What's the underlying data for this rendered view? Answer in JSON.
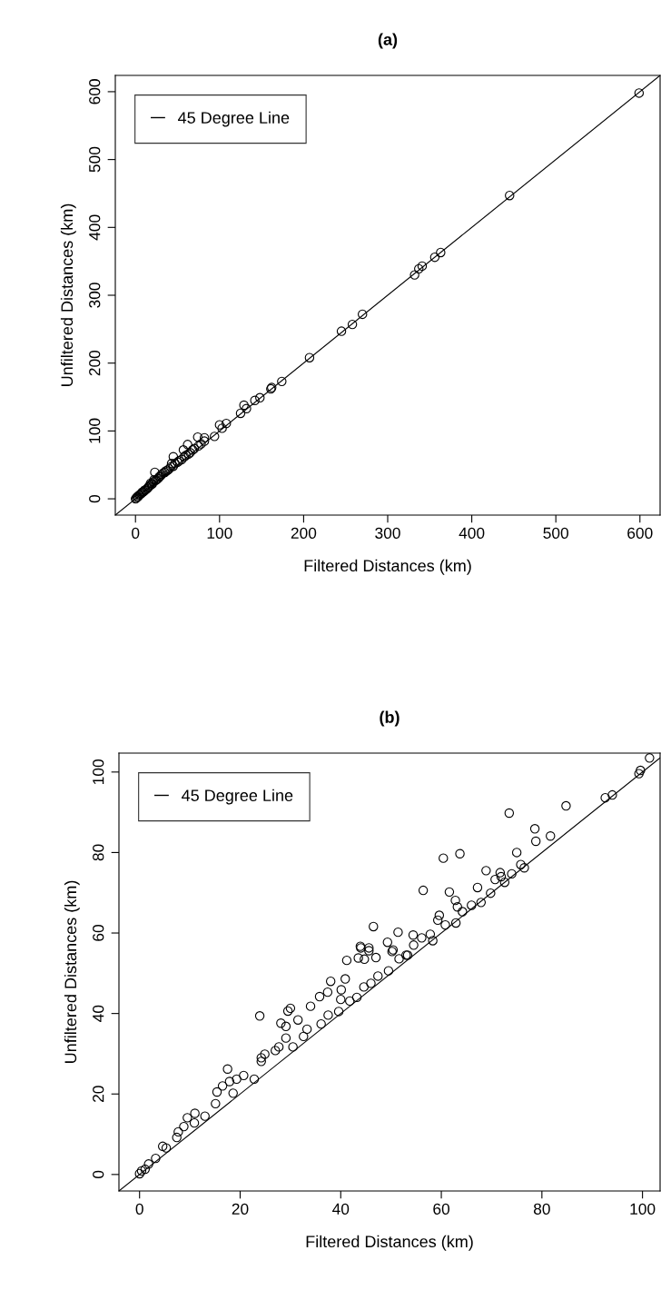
{
  "chart_data": [
    {
      "type": "scatter",
      "title": "(a)",
      "xlabel": "Filtered Distances (km)",
      "ylabel": "Unfiltered Distances (km)",
      "xlim": [
        -24,
        624
      ],
      "ylim": [
        -24,
        624
      ],
      "xticks": [
        0,
        100,
        200,
        300,
        400,
        500,
        600
      ],
      "yticks": [
        0,
        100,
        200,
        300,
        400,
        500,
        600
      ],
      "grid": false,
      "legend": "top left",
      "series": [
        {
          "marker": "circle",
          "color": "#000000",
          "x": [
            0,
            1,
            2,
            3,
            4,
            5,
            6,
            7,
            8,
            9,
            10,
            11,
            12,
            14,
            15,
            16,
            17,
            18,
            19,
            20,
            21,
            22,
            23,
            24,
            25,
            27,
            28,
            29,
            30,
            31,
            33,
            35,
            36,
            38,
            40,
            42,
            43,
            45,
            45,
            47,
            50,
            52,
            55,
            57,
            58,
            60,
            62,
            63,
            65,
            68,
            70,
            74,
            75,
            78,
            82,
            82,
            94,
            100,
            103,
            108,
            125,
            129,
            132,
            142,
            148,
            161,
            162,
            174,
            207,
            245,
            258,
            270,
            332,
            337,
            341,
            356,
            363,
            445,
            599
          ],
          "values": [
            0,
            1,
            3,
            3,
            5,
            6,
            7,
            8,
            10,
            10,
            11,
            13,
            13,
            15,
            17,
            18,
            20,
            23,
            21,
            22,
            25,
            28,
            39,
            27,
            28,
            30,
            32,
            33,
            34,
            36,
            38,
            39,
            41,
            42,
            44,
            47,
            52,
            48,
            62,
            52,
            54,
            56,
            58,
            72,
            62,
            64,
            80,
            66,
            68,
            72,
            74,
            91,
            78,
            81,
            90,
            85,
            92,
            109,
            104,
            111,
            126,
            138,
            133,
            145,
            149,
            162,
            164,
            173,
            208,
            247,
            257,
            272,
            330,
            339,
            343,
            356,
            363,
            447,
            598
          ]
        },
        {
          "type": "line",
          "name": "45 Degree Line",
          "color": "#000000",
          "x": [
            -24,
            624
          ],
          "values": [
            -24,
            624
          ]
        }
      ]
    },
    {
      "type": "scatter",
      "title": "(b)",
      "xlabel": "Filtered Distances (km)",
      "ylabel": "Unfiltered Distances (km)",
      "xlim": [
        -4.1,
        103.5
      ],
      "ylim": [
        -4.1,
        104.7
      ],
      "xticks": [
        0,
        20,
        40,
        60,
        80,
        100
      ],
      "yticks": [
        0,
        20,
        40,
        60,
        80,
        100
      ],
      "grid": false,
      "legend": "top left",
      "series": [
        {
          "marker": "circle",
          "color": "#000000",
          "x": [
            101.4,
            99.3,
            99.6,
            92.6,
            94,
            84.8,
            73.5,
            78.6,
            78.8,
            81.7,
            75,
            75.8,
            76.5,
            63.7,
            60.4,
            68.9,
            71.7,
            71.9,
            70.7,
            74,
            72.6,
            67.2,
            69.8,
            67.9,
            56.4,
            61.6,
            62.8,
            63.2,
            66,
            64.2,
            59.6,
            59.3,
            60.8,
            62.9,
            46.5,
            51.4,
            54.4,
            56.1,
            57.8,
            58.3,
            49.3,
            54.5,
            44,
            45.6,
            50.2,
            53.3,
            43.9,
            45.6,
            50.4,
            47,
            41.2,
            43.5,
            44.7,
            40.9,
            38,
            40.1,
            37.4,
            35.8,
            40,
            34,
            30,
            29.5,
            23.9,
            28.1,
            29.1,
            31.5,
            29.1,
            17.5,
            17.9,
            15.4,
            11,
            8.8,
            7.7,
            51.6,
            49.5,
            46,
            43.2,
            39.6,
            36.1,
            32.6,
            30.5,
            27,
            24.2,
            22.8,
            20.7,
            18.6,
            15.1,
            13,
            10.9,
            7.4,
            5.3,
            3.2,
            1.1,
            0.4,
            0,
            1.8,
            4.6,
            9.5,
            16.5,
            19.3,
            24.2,
            24.9,
            27.7,
            33.3,
            37.5,
            41.8,
            44.6,
            47.4,
            53
          ],
          "values": [
            103.5,
            99.6,
            100.4,
            93.6,
            94.3,
            91.6,
            89.8,
            85.9,
            82.8,
            84.1,
            80,
            77,
            76.2,
            79.7,
            78.6,
            75.5,
            75,
            74,
            73.3,
            74.7,
            72.6,
            71.3,
            69.9,
            67.6,
            70.6,
            70.2,
            68.1,
            66.5,
            66.9,
            65.3,
            64.4,
            63.2,
            62,
            62.5,
            61.6,
            60.2,
            59.5,
            58.8,
            59.7,
            58.1,
            57.7,
            57,
            56.3,
            55.6,
            55.4,
            54.5,
            56.7,
            56.3,
            55.8,
            53.9,
            53.2,
            53.8,
            53.5,
            48.6,
            48,
            45.9,
            45.3,
            44.2,
            43.5,
            41.8,
            41.3,
            40.6,
            39.4,
            37.6,
            36.8,
            38.4,
            33.9,
            26.2,
            23.1,
            20.5,
            15.2,
            11.9,
            10.6,
            53.6,
            50.6,
            47.5,
            44,
            40.5,
            37.4,
            34.3,
            31.7,
            30.8,
            28.1,
            23.7,
            24.6,
            20.2,
            17.6,
            14.5,
            12.8,
            9.2,
            6.6,
            4,
            1.3,
            0.9,
            0.2,
            2.6,
            7,
            14.1,
            22,
            23.7,
            29,
            29.9,
            31.7,
            36.1,
            39.6,
            43.1,
            46.6,
            49.3,
            54.5
          ]
        },
        {
          "type": "line",
          "name": "45 Degree Line",
          "color": "#000000",
          "x": [
            -4.1,
            103.5
          ],
          "values": [
            -4.1,
            103.5
          ]
        }
      ]
    }
  ]
}
